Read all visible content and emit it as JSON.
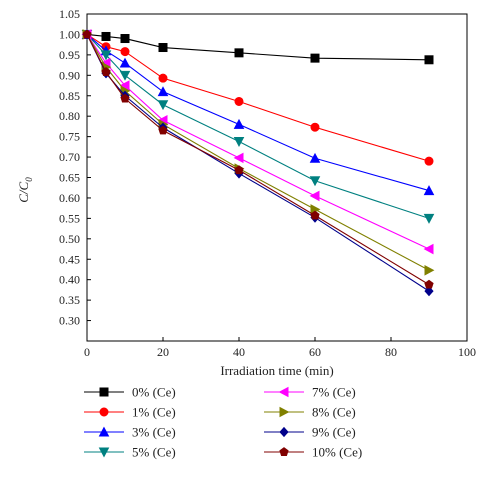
{
  "chart_data": {
    "type": "line",
    "xlabel": "Irradiation time (min)",
    "ylabel": "C/C",
    "ylabel_sub": "0",
    "xlim": [
      0,
      100
    ],
    "ylim": [
      0.25,
      1.05
    ],
    "x_ticks": [
      0,
      20,
      40,
      60,
      80,
      100
    ],
    "y_ticks": [
      0.3,
      0.35,
      0.4,
      0.45,
      0.5,
      0.55,
      0.6,
      0.65,
      0.7,
      0.75,
      0.8,
      0.85,
      0.9,
      0.95,
      1.0,
      1.05
    ],
    "grid": false,
    "legend_position": "bottom, two columns",
    "series": [
      {
        "name": "0% (Ce)",
        "color": "#000000",
        "marker": "square",
        "x": [
          0,
          5,
          10,
          20,
          40,
          60,
          90
        ],
        "y": [
          1.0,
          0.995,
          0.99,
          0.968,
          0.955,
          0.942,
          0.938
        ]
      },
      {
        "name": "1% (Ce)",
        "color": "#ff0000",
        "marker": "circle",
        "x": [
          0,
          5,
          10,
          20,
          40,
          60,
          90
        ],
        "y": [
          1.0,
          0.97,
          0.958,
          0.893,
          0.836,
          0.773,
          0.69
        ]
      },
      {
        "name": "3% (Ce)",
        "color": "#0000ff",
        "marker": "triangle-up",
        "x": [
          0,
          5,
          10,
          20,
          40,
          60,
          90
        ],
        "y": [
          1.0,
          0.96,
          0.93,
          0.86,
          0.78,
          0.697,
          0.618
        ]
      },
      {
        "name": "5% (Ce)",
        "color": "#008080",
        "marker": "triangle-down",
        "x": [
          0,
          5,
          10,
          20,
          40,
          60,
          90
        ],
        "y": [
          1.0,
          0.95,
          0.9,
          0.828,
          0.738,
          0.642,
          0.55
        ]
      },
      {
        "name": "7% (Ce)",
        "color": "#ff00ff",
        "marker": "triangle-left",
        "x": [
          0,
          5,
          10,
          20,
          40,
          60,
          90
        ],
        "y": [
          1.0,
          0.93,
          0.875,
          0.79,
          0.698,
          0.605,
          0.475
        ]
      },
      {
        "name": "8% (Ce)",
        "color": "#808000",
        "marker": "triangle-right",
        "x": [
          0,
          5,
          10,
          20,
          40,
          60,
          90
        ],
        "y": [
          1.0,
          0.92,
          0.862,
          0.78,
          0.672,
          0.572,
          0.423
        ]
      },
      {
        "name": "9% (Ce)",
        "color": "#00008b",
        "marker": "diamond",
        "x": [
          0,
          5,
          10,
          20,
          40,
          60,
          90
        ],
        "y": [
          1.0,
          0.905,
          0.85,
          0.772,
          0.66,
          0.552,
          0.372
        ]
      },
      {
        "name": "10% (Ce)",
        "color": "#800000",
        "marker": "pentagon",
        "x": [
          0,
          5,
          10,
          20,
          40,
          60,
          90
        ],
        "y": [
          1.0,
          0.908,
          0.843,
          0.765,
          0.668,
          0.557,
          0.388
        ]
      }
    ]
  }
}
